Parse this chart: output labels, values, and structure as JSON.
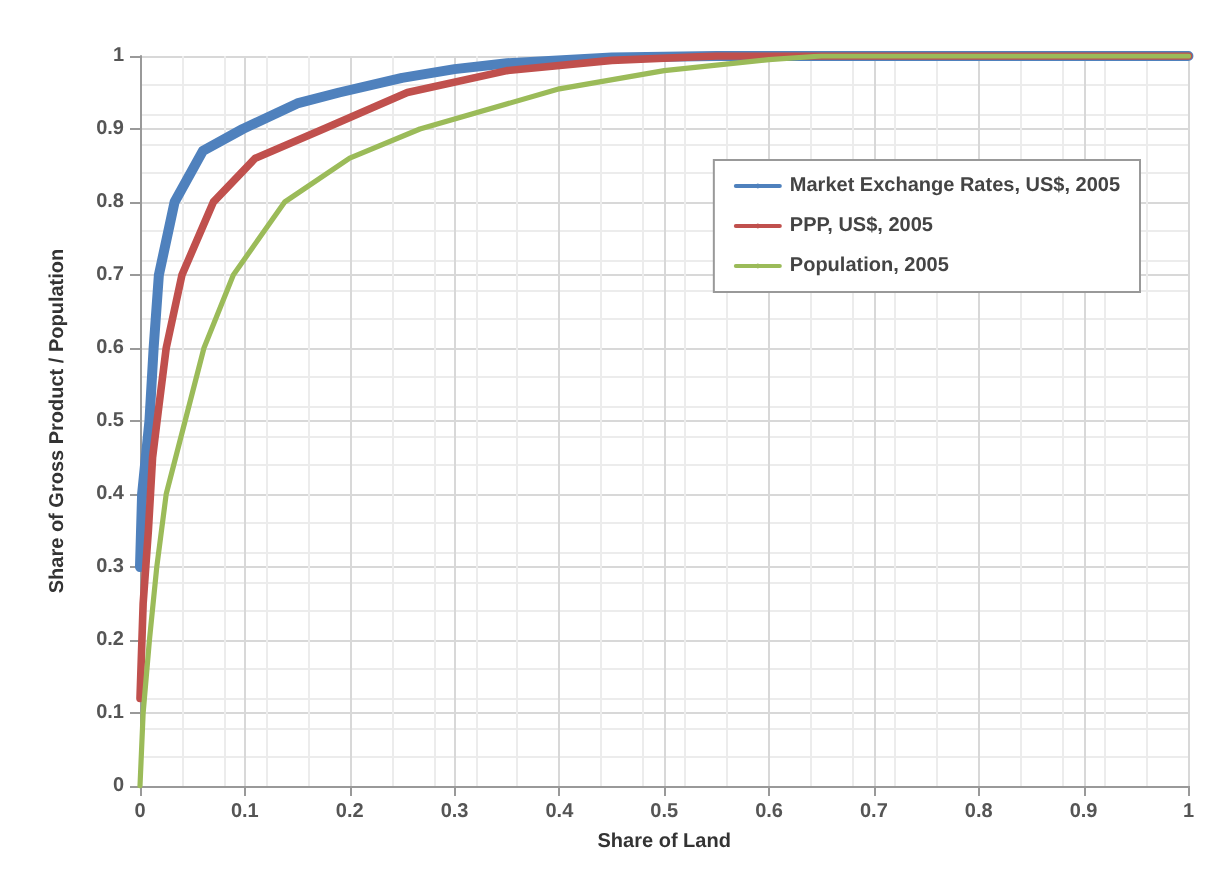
{
  "chart_data": {
    "type": "line",
    "xlabel": "Share of Land",
    "ylabel": "Share of Gross Product / Population",
    "xlim": [
      0,
      1
    ],
    "ylim": [
      0,
      1
    ],
    "xticks": [
      0,
      0.1,
      0.2,
      0.3,
      0.4,
      0.5,
      0.6,
      0.7,
      0.8,
      0.9,
      1
    ],
    "yticks": [
      0,
      0.1,
      0.2,
      0.3,
      0.4,
      0.5,
      0.6,
      0.7,
      0.8,
      0.9,
      1
    ],
    "grid": true,
    "legend": "top right",
    "marker": "none",
    "line_style": "solid",
    "series": [
      {
        "name": "Market Exchange Rates, US$, 2005",
        "color": "#4f81bd",
        "x": [
          0,
          0.002,
          0.009,
          0.013,
          0.018,
          0.033,
          0.06,
          0.098,
          0.15,
          0.19,
          0.25,
          0.3,
          0.35,
          0.45,
          0.55,
          1
        ],
        "values": [
          0.3,
          0.4,
          0.5,
          0.6,
          0.7,
          0.8,
          0.87,
          0.9,
          0.935,
          0.95,
          0.97,
          0.982,
          0.99,
          0.998,
          1,
          1
        ]
      },
      {
        "name": "PPP, US$, 2005",
        "color": "#c0504d",
        "x": [
          0,
          0.003,
          0.008,
          0.012,
          0.018,
          0.025,
          0.04,
          0.07,
          0.11,
          0.175,
          0.255,
          0.35,
          0.45,
          0.55,
          1
        ],
        "values": [
          0.12,
          0.25,
          0.35,
          0.45,
          0.52,
          0.6,
          0.7,
          0.8,
          0.86,
          0.9,
          0.95,
          0.98,
          0.994,
          1,
          1
        ]
      },
      {
        "name": "Population, 2005",
        "color": "#9bbb59",
        "x": [
          0,
          0.003,
          0.009,
          0.016,
          0.025,
          0.043,
          0.061,
          0.089,
          0.138,
          0.2,
          0.267,
          0.4,
          0.5,
          0.6,
          0.65,
          1
        ],
        "values": [
          0,
          0.1,
          0.2,
          0.3,
          0.4,
          0.5,
          0.6,
          0.7,
          0.8,
          0.86,
          0.9,
          0.955,
          0.98,
          0.995,
          1,
          1
        ]
      }
    ]
  }
}
